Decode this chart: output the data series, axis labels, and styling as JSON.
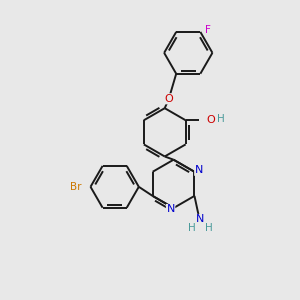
{
  "background_color": "#e8e8e8",
  "bond_color": "#1a1a1a",
  "atom_colors": {
    "O": "#cc0000",
    "N": "#0000cc",
    "Br": "#cc7700",
    "F": "#cc00cc",
    "H": "#4a9a9a",
    "C": "#1a1a1a"
  },
  "bond_width": 1.4,
  "figsize": [
    3.0,
    3.0
  ],
  "dpi": 100
}
